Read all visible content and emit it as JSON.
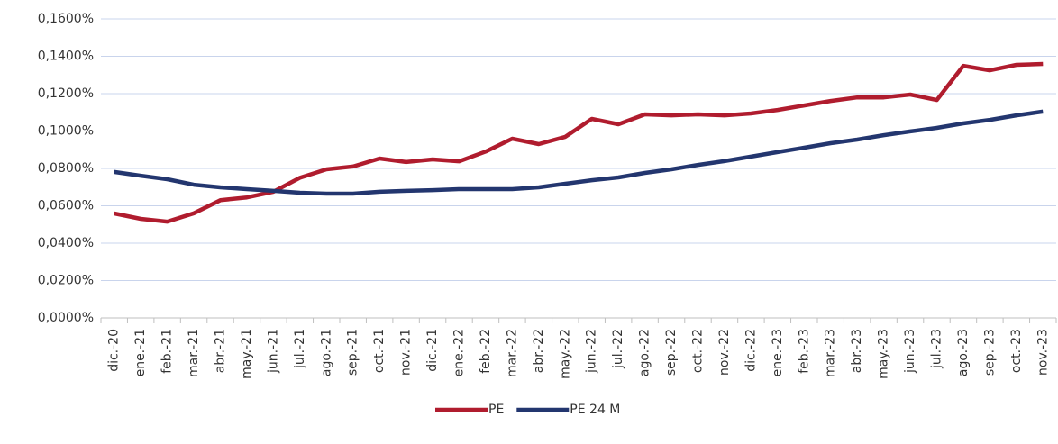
{
  "chart_data": {
    "type": "line",
    "categories": [
      "dic.-20",
      "ene.-21",
      "feb.-21",
      "mar.-21",
      "abr.-21",
      "may.-21",
      "jun.-21",
      "jul.-21",
      "ago.-21",
      "sep.-21",
      "oct.-21",
      "nov.-21",
      "dic.-21",
      "ene.-22",
      "feb.-22",
      "mar.-22",
      "abr.-22",
      "may.-22",
      "jun.-22",
      "jul.-22",
      "ago.-22",
      "sep.-22",
      "oct.-22",
      "nov.-22",
      "dic.-22",
      "ene.-23",
      "feb.-23",
      "mar.-23",
      "abr.-23",
      "may.-23",
      "jun.-23",
      "jul.-23",
      "ago.-23",
      "sep.-23",
      "oct.-23",
      "nov.-23"
    ],
    "series": [
      {
        "name": "PE",
        "color": "#b01c2e",
        "values": [
          0.0559,
          0.053,
          0.0515,
          0.056,
          0.063,
          0.0645,
          0.0675,
          0.075,
          0.0795,
          0.081,
          0.0853,
          0.0834,
          0.0848,
          0.0838,
          0.089,
          0.0959,
          0.093,
          0.0969,
          0.1065,
          0.1036,
          0.1089,
          0.1084,
          0.1089,
          0.1084,
          0.1094,
          0.1113,
          0.1137,
          0.1161,
          0.118,
          0.118,
          0.1195,
          0.1166,
          0.1349,
          0.1325,
          0.1354,
          0.1359
        ]
      },
      {
        "name": "PE 24 M",
        "color": "#23366f",
        "values": [
          0.0781,
          0.0761,
          0.0742,
          0.0713,
          0.0699,
          0.0689,
          0.068,
          0.067,
          0.0665,
          0.0665,
          0.0675,
          0.068,
          0.0684,
          0.0689,
          0.0689,
          0.0689,
          0.0699,
          0.0718,
          0.0737,
          0.0752,
          0.0776,
          0.0795,
          0.0819,
          0.0839,
          0.0863,
          0.0887,
          0.0911,
          0.0935,
          0.0954,
          0.0978,
          0.0998,
          0.1017,
          0.1041,
          0.106,
          0.1084,
          0.1104
        ]
      }
    ],
    "ylim": [
      0,
      0.16
    ],
    "yticks": [
      {
        "value": 0,
        "label": "0,0000%"
      },
      {
        "value": 0.02,
        "label": "0,0200%"
      },
      {
        "value": 0.04,
        "label": "0,0400%"
      },
      {
        "value": 0.06,
        "label": "0,0600%"
      },
      {
        "value": 0.08,
        "label": "0,0800%"
      },
      {
        "value": 0.1,
        "label": "0,1000%"
      },
      {
        "value": 0.12,
        "label": "0,1200%"
      },
      {
        "value": 0.14,
        "label": "0,1400%"
      },
      {
        "value": 0.16,
        "label": "0,1600%"
      }
    ],
    "grid": true,
    "legend": "bottom"
  }
}
